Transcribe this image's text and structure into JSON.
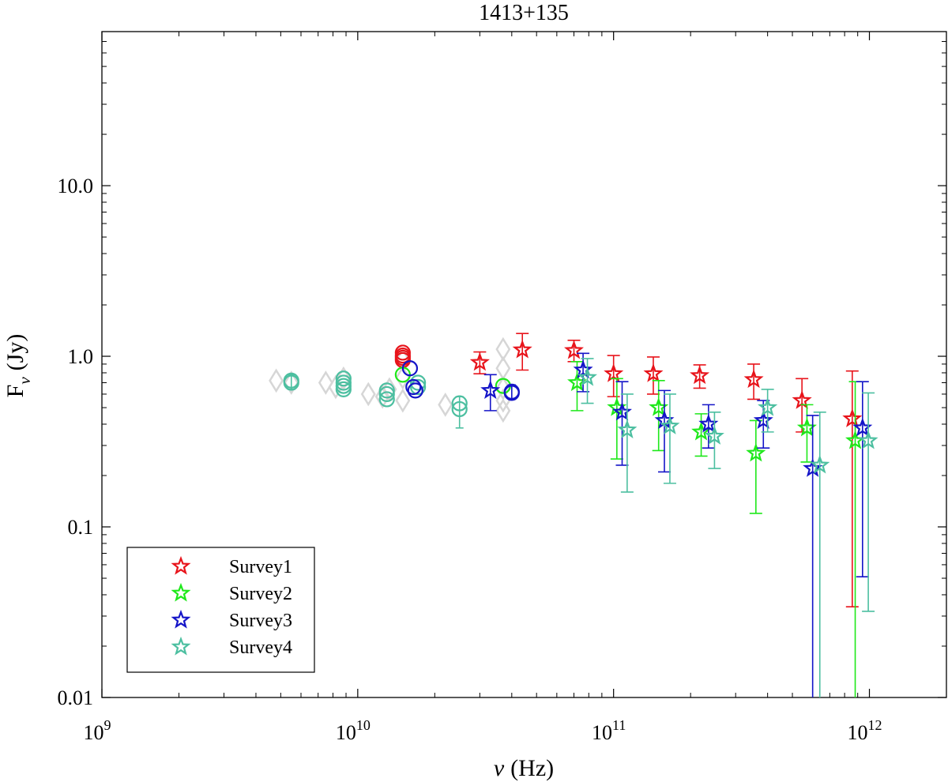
{
  "chart_data": {
    "type": "scatter",
    "title": "1413+135",
    "xlabel": {
      "symbol": "ν",
      "unit": "(Hz)"
    },
    "ylabel": {
      "base": "F",
      "sub": "ν",
      "unit": "(Jy)"
    },
    "xscale": "log",
    "yscale": "log",
    "xlim": [
      1000000000.0,
      2000000000000.0
    ],
    "ylim": [
      0.01,
      80
    ],
    "x_ticks": [
      {
        "value": 1000000000.0,
        "base": "10",
        "exp": "9"
      },
      {
        "value": 10000000000.0,
        "base": "10",
        "exp": "10"
      },
      {
        "value": 100000000000.0,
        "base": "10",
        "exp": "11"
      },
      {
        "value": 1000000000000.0,
        "base": "10",
        "exp": "12"
      }
    ],
    "y_ticks": [
      {
        "value": 0.01,
        "label": "0.01"
      },
      {
        "value": 0.1,
        "label": "0.1"
      },
      {
        "value": 1,
        "label": "1.0"
      },
      {
        "value": 10,
        "label": "10.0"
      }
    ],
    "legend": {
      "position": "bottom-left",
      "entries": [
        {
          "name": "Survey1",
          "color": "#e8141b"
        },
        {
          "name": "Survey2",
          "color": "#1ee81a"
        },
        {
          "name": "Survey3",
          "color": "#1414c8"
        },
        {
          "name": "Survey4",
          "color": "#4cbfa0"
        }
      ]
    },
    "background_points": {
      "color": "#d6d6d6",
      "marker": "diamond",
      "points": [
        {
          "x": 4800000000.0,
          "y": 0.72
        },
        {
          "x": 5500000000.0,
          "y": 0.7
        },
        {
          "x": 7500000000.0,
          "y": 0.7
        },
        {
          "x": 8200000000.0,
          "y": 0.66
        },
        {
          "x": 8800000000.0,
          "y": 0.74
        },
        {
          "x": 11000000000.0,
          "y": 0.6
        },
        {
          "x": 12500000000.0,
          "y": 0.58
        },
        {
          "x": 13300000000.0,
          "y": 0.64
        },
        {
          "x": 15000000000.0,
          "y": 0.55
        },
        {
          "x": 15000000000.0,
          "y": 0.75
        },
        {
          "x": 15000000000.0,
          "y": 0.95
        },
        {
          "x": 22000000000.0,
          "y": 0.52
        },
        {
          "x": 37000000000.0,
          "y": 0.48
        },
        {
          "x": 37000000000.0,
          "y": 0.65
        },
        {
          "x": 37000000000.0,
          "y": 0.85
        },
        {
          "x": 37000000000.0,
          "y": 1.1
        },
        {
          "x": 37000000000.0,
          "y": 0.55
        }
      ]
    },
    "circle_points": [
      {
        "color": "#4cbfa0",
        "x": 5500000000.0,
        "y": 0.72,
        "err": [
          0.64,
          0.78
        ]
      },
      {
        "color": "#4cbfa0",
        "x": 5500000000.0,
        "y": 0.7
      },
      {
        "color": "#4cbfa0",
        "x": 8800000000.0,
        "y": 0.74
      },
      {
        "color": "#4cbfa0",
        "x": 8800000000.0,
        "y": 0.7
      },
      {
        "color": "#4cbfa0",
        "x": 8800000000.0,
        "y": 0.67
      },
      {
        "color": "#4cbfa0",
        "x": 8800000000.0,
        "y": 0.64
      },
      {
        "color": "#4cbfa0",
        "x": 13000000000.0,
        "y": 0.63
      },
      {
        "color": "#4cbfa0",
        "x": 13000000000.0,
        "y": 0.6
      },
      {
        "color": "#4cbfa0",
        "x": 13000000000.0,
        "y": 0.56
      },
      {
        "color": "#4cbfa0",
        "x": 25000000000.0,
        "y": 0.53,
        "err": [
          0.38,
          0.58
        ]
      },
      {
        "color": "#4cbfa0",
        "x": 25000000000.0,
        "y": 0.49
      },
      {
        "color": "#4cbfa0",
        "x": 17200000000.0,
        "y": 0.7
      },
      {
        "color": "#4cbfa0",
        "x": 17200000000.0,
        "y": 0.66
      },
      {
        "color": "#e8141b",
        "x": 15000000000.0,
        "y": 1.05
      },
      {
        "color": "#e8141b",
        "x": 15000000000.0,
        "y": 1.01
      },
      {
        "color": "#e8141b",
        "x": 15000000000.0,
        "y": 0.98
      },
      {
        "color": "#e8141b",
        "x": 15000000000.0,
        "y": 0.95
      },
      {
        "color": "#1ee81a",
        "x": 15000000000.0,
        "y": 0.78
      },
      {
        "color": "#1ee81a",
        "x": 37000000000.0,
        "y": 0.67
      },
      {
        "color": "#1414c8",
        "x": 16000000000.0,
        "y": 0.85
      },
      {
        "color": "#1414c8",
        "x": 16500000000.0,
        "y": 0.66
      },
      {
        "color": "#1414c8",
        "x": 16800000000.0,
        "y": 0.63
      },
      {
        "color": "#1414c8",
        "x": 40000000000.0,
        "y": 0.62,
        "err": [
          0.56,
          0.68
        ]
      },
      {
        "color": "#1414c8",
        "x": 40000000000.0,
        "y": 0.61
      }
    ],
    "series": [
      {
        "name": "Survey1",
        "color": "#e8141b",
        "points": [
          {
            "x": 30000000000.0,
            "y": 0.92,
            "lo": 0.79,
            "hi": 1.06
          },
          {
            "x": 44000000000.0,
            "y": 1.09,
            "lo": 0.83,
            "hi": 1.36
          },
          {
            "x": 70000000000.0,
            "y": 1.08,
            "lo": 0.93,
            "hi": 1.24
          },
          {
            "x": 100000000000.0,
            "y": 0.79,
            "lo": 0.58,
            "hi": 1.01
          },
          {
            "x": 143000000000.0,
            "y": 0.79,
            "lo": 0.6,
            "hi": 0.99
          },
          {
            "x": 217000000000.0,
            "y": 0.77,
            "lo": 0.65,
            "hi": 0.89
          },
          {
            "x": 353000000000.0,
            "y": 0.73,
            "lo": 0.56,
            "hi": 0.9
          },
          {
            "x": 545000000000.0,
            "y": 0.55,
            "lo": 0.36,
            "hi": 0.74
          },
          {
            "x": 857000000000.0,
            "y": 0.43,
            "lo": 0.034,
            "hi": 0.82
          }
        ]
      },
      {
        "name": "Survey2",
        "color": "#1ee81a",
        "points": [
          {
            "x": 72000000000.0,
            "y": 0.7,
            "lo": 0.48,
            "hi": 0.93
          },
          {
            "x": 103000000000.0,
            "y": 0.5,
            "lo": 0.25,
            "hi": 0.74
          },
          {
            "x": 150000000000.0,
            "y": 0.5,
            "lo": 0.28,
            "hi": 0.72
          },
          {
            "x": 220000000000.0,
            "y": 0.36,
            "lo": 0.26,
            "hi": 0.46
          },
          {
            "x": 360000000000.0,
            "y": 0.27,
            "lo": 0.12,
            "hi": 0.42
          },
          {
            "x": 570000000000.0,
            "y": 0.38,
            "lo": 0.24,
            "hi": 0.52
          },
          {
            "x": 880000000000.0,
            "y": 0.32,
            "lo": 0.005,
            "hi": 0.71
          }
        ]
      },
      {
        "name": "Survey3",
        "color": "#1414c8",
        "points": [
          {
            "x": 33000000000.0,
            "y": 0.63,
            "lo": 0.48,
            "hi": 0.78
          },
          {
            "x": 76000000000.0,
            "y": 0.83,
            "lo": 0.62,
            "hi": 1.04
          },
          {
            "x": 108000000000.0,
            "y": 0.47,
            "lo": 0.23,
            "hi": 0.71
          },
          {
            "x": 158000000000.0,
            "y": 0.42,
            "lo": 0.21,
            "hi": 0.63
          },
          {
            "x": 235000000000.0,
            "y": 0.4,
            "lo": 0.29,
            "hi": 0.52
          },
          {
            "x": 385000000000.0,
            "y": 0.42,
            "lo": 0.29,
            "hi": 0.55
          },
          {
            "x": 600000000000.0,
            "y": 0.22,
            "lo": 0.005,
            "hi": 0.45
          },
          {
            "x": 940000000000.0,
            "y": 0.38,
            "lo": 0.051,
            "hi": 0.71
          }
        ]
      },
      {
        "name": "Survey4",
        "color": "#4cbfa0",
        "points": [
          {
            "x": 79000000000.0,
            "y": 0.75,
            "lo": 0.53,
            "hi": 0.97
          },
          {
            "x": 113000000000.0,
            "y": 0.37,
            "lo": 0.16,
            "hi": 0.6
          },
          {
            "x": 166000000000.0,
            "y": 0.39,
            "lo": 0.18,
            "hi": 0.6
          },
          {
            "x": 248000000000.0,
            "y": 0.34,
            "lo": 0.22,
            "hi": 0.47
          },
          {
            "x": 400000000000.0,
            "y": 0.5,
            "lo": 0.36,
            "hi": 0.64
          },
          {
            "x": 640000000000.0,
            "y": 0.23,
            "lo": 0.005,
            "hi": 0.47
          },
          {
            "x": 990000000000.0,
            "y": 0.32,
            "lo": 0.032,
            "hi": 0.61
          }
        ]
      }
    ]
  }
}
